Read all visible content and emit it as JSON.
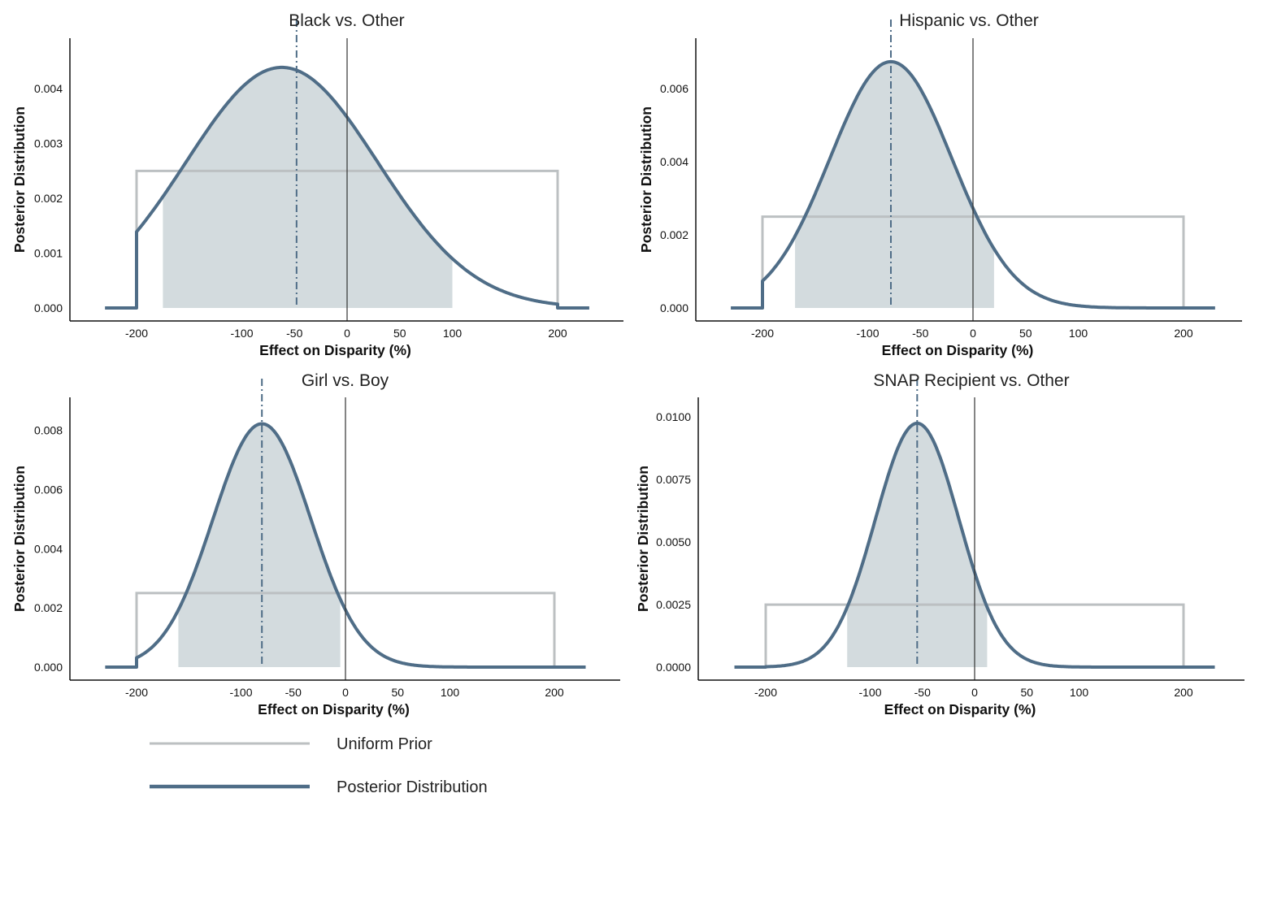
{
  "colors": {
    "posterior": "#4f6d87",
    "prior": "#bcc0c2",
    "fill": "#d3dbde",
    "zero_line": "#333333",
    "axis": "#111111"
  },
  "chart_data": [
    {
      "type": "line",
      "title": "Black vs. Other",
      "xlabel": "Effect on Disparity (%)",
      "ylabel": "Posterior Distribution",
      "xlim": [
        -240,
        240
      ],
      "ylim": [
        -0.0002,
        0.0047
      ],
      "xticks": [
        -200,
        -100,
        -50,
        0,
        50,
        100,
        200
      ],
      "xtick_labels": [
        "-200",
        "-100",
        "-50",
        "0",
        "50",
        "100",
        "200"
      ],
      "yticks": [
        0,
        0.001,
        0.002,
        0.003,
        0.004
      ],
      "ytick_labels": [
        "0.000",
        "0.001",
        "0.002",
        "0.003",
        "0.004"
      ],
      "posterior": {
        "mean": -62,
        "sd": 91,
        "peak": 0.00439,
        "support": [
          -200,
          200
        ]
      },
      "prior": {
        "lower": -200,
        "upper": 200,
        "density": 0.0025
      },
      "credible_interval": [
        -175,
        100
      ],
      "posterior_mean_line": -48,
      "zero_line": 0,
      "grid": false
    },
    {
      "type": "line",
      "title": "Hispanic vs. Other",
      "xlabel": "Effect on Disparity (%)",
      "ylabel": "Posterior Distribution",
      "xlim": [
        -240,
        240
      ],
      "ylim": [
        -0.00032,
        0.00705
      ],
      "xticks": [
        -200,
        -100,
        -50,
        0,
        50,
        100,
        200
      ],
      "xtick_labels": [
        "-200",
        "-100",
        "-50",
        "0",
        "50",
        "100",
        "200"
      ],
      "yticks": [
        0,
        0.002,
        0.004,
        0.006
      ],
      "ytick_labels": [
        "0.000",
        "0.002",
        "0.004",
        "0.006"
      ],
      "posterior": {
        "mean": -78,
        "sd": 58,
        "peak": 0.00674,
        "support": [
          -200,
          200
        ]
      },
      "prior": {
        "lower": -200,
        "upper": 200,
        "density": 0.0025
      },
      "credible_interval": [
        -169,
        20
      ],
      "posterior_mean_line": -78,
      "zero_line": 0,
      "grid": false
    },
    {
      "type": "line",
      "title": "Girl vs. Boy",
      "xlabel": "Effect on Disparity (%)",
      "ylabel": "Posterior Distribution",
      "xlim": [
        -240,
        240
      ],
      "ylim": [
        -0.00038,
        0.0087
      ],
      "xticks": [
        -200,
        -100,
        -50,
        0,
        50,
        100,
        200
      ],
      "xtick_labels": [
        "-200",
        "-100",
        "-50",
        "0",
        "50",
        "100",
        "200"
      ],
      "yticks": [
        0,
        0.002,
        0.004,
        0.006,
        0.008
      ],
      "ytick_labels": [
        "0.000",
        "0.002",
        "0.004",
        "0.006",
        "0.008"
      ],
      "posterior": {
        "mean": -80,
        "sd": 47,
        "peak": 0.00822,
        "support": [
          -200,
          200
        ]
      },
      "prior": {
        "lower": -200,
        "upper": 200,
        "density": 0.0025
      },
      "credible_interval": [
        -160,
        -5
      ],
      "posterior_mean_line": -80,
      "zero_line": 0,
      "grid": false
    },
    {
      "type": "line",
      "title": "SNAP Recipient vs. Other",
      "xlabel": "Effect on Disparity (%)",
      "ylabel": "Posterior Distribution",
      "xlim": [
        -240,
        240
      ],
      "ylim": [
        -0.00045,
        0.0103
      ],
      "xticks": [
        -200,
        -100,
        -50,
        0,
        50,
        100,
        200
      ],
      "xtick_labels": [
        "-200",
        "-100",
        "-50",
        "0",
        "50",
        "100",
        "200"
      ],
      "yticks": [
        0,
        0.0025,
        0.005,
        0.0075,
        0.01
      ],
      "ytick_labels": [
        "0.0000",
        "0.0025",
        "0.0050",
        "0.0075",
        "0.0100"
      ],
      "posterior": {
        "mean": -55,
        "sd": 40,
        "peak": 0.00975,
        "support": [
          -200,
          200
        ]
      },
      "prior": {
        "lower": -200,
        "upper": 200,
        "density": 0.0025
      },
      "credible_interval": [
        -122,
        12
      ],
      "posterior_mean_line": -55,
      "zero_line": 0,
      "grid": false
    }
  ],
  "legend": {
    "items": [
      {
        "label": "Uniform Prior",
        "style": "prior"
      },
      {
        "label": "Posterior Distribution",
        "style": "posterior"
      }
    ]
  }
}
